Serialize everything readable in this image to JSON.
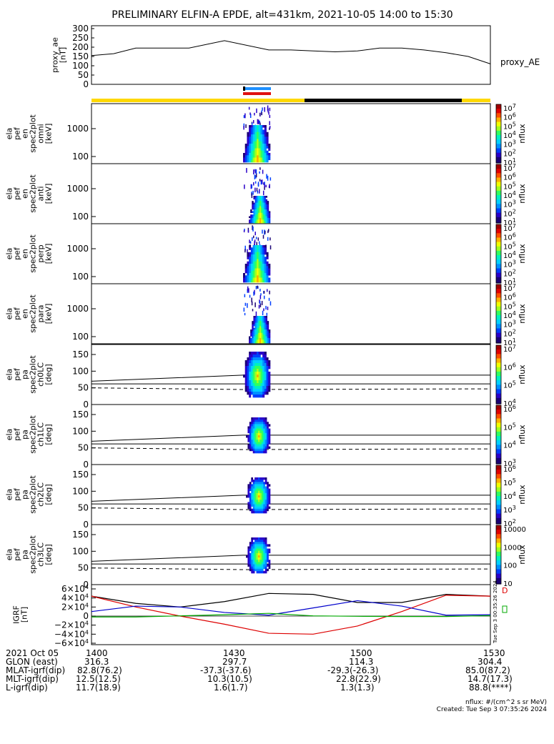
{
  "title": "PRELIMINARY ELFIN-A EPDE, alt=431km, 2021-10-05 14:00 to 15:30",
  "colors": {
    "bar_yellow": "#ffd800",
    "bar_black": "#000000",
    "bar_blue": "#1e90ff",
    "bar_red": "#e01010"
  },
  "chart_data": [
    {
      "type": "line",
      "ylabel": "proxy_ae\n[nT]",
      "yticks": [
        "300",
        "250",
        "200",
        "150",
        "100",
        "50",
        "0"
      ],
      "ylim": [
        0,
        300
      ],
      "series": [
        {
          "name": "proxy_AE",
          "x_min": [
            0,
            5,
            10,
            15,
            22,
            30,
            40,
            45,
            50,
            55,
            60,
            65,
            70,
            75,
            80,
            85,
            90
          ],
          "values": [
            155,
            165,
            195,
            195,
            195,
            235,
            185,
            185,
            180,
            175,
            180,
            195,
            195,
            185,
            170,
            150,
            110
          ]
        }
      ]
    },
    {
      "type": "heatmap",
      "ylabel": "ela\npef\nen\nspec2plot\nomni\n[keV]",
      "yticks": [
        "1000",
        "100"
      ],
      "zlabel": "nflux",
      "ztick_labels": [
        "10^7",
        "10^6",
        "10^5",
        "10^4",
        "10^3",
        "10^2",
        "10^1"
      ]
    },
    {
      "type": "heatmap",
      "ylabel": "ela\npef\nen\nspec2plot\nanti\n[keV]",
      "yticks": [
        "1000",
        "100"
      ],
      "zlabel": "nflux",
      "ztick_labels": [
        "10^7",
        "10^6",
        "10^5",
        "10^4",
        "10^3",
        "10^2",
        "10^1"
      ]
    },
    {
      "type": "heatmap",
      "ylabel": "ela\npef\nen\nspec2plot\nperp\n[keV]",
      "yticks": [
        "1000",
        "100"
      ],
      "zlabel": "nflux",
      "ztick_labels": [
        "10^7",
        "10^6",
        "10^5",
        "10^4",
        "10^3",
        "10^2",
        "10^1"
      ]
    },
    {
      "type": "heatmap",
      "ylabel": "ela\npef\nen\nspec2plot\npara\n[keV]",
      "yticks": [
        "1000",
        "100"
      ],
      "zlabel": "nflux",
      "ztick_labels": [
        "10^7",
        "10^6",
        "10^5",
        "10^4",
        "10^3",
        "10^2",
        "10^1"
      ]
    },
    {
      "type": "heatmap",
      "ylabel": "ela\npef\npa\nspec2plot\nch0LC\n[deg]",
      "yticks": [
        "150",
        "100",
        "50",
        "0"
      ],
      "ylim": [
        0,
        180
      ],
      "zlabel": "nflux",
      "ztick_labels": [
        "10^7",
        "10^6",
        "10^5",
        "10^4"
      ]
    },
    {
      "type": "heatmap",
      "ylabel": "ela\npef\npa\nspec2plot\nch1LC\n[deg]",
      "yticks": [
        "150",
        "100",
        "50",
        "0"
      ],
      "ylim": [
        0,
        180
      ],
      "zlabel": "nflux",
      "ztick_labels": [
        "10^6",
        "10^5",
        "10^4",
        "10^3"
      ]
    },
    {
      "type": "heatmap",
      "ylabel": "ela\npef\npa\nspec2plot\nch2LC\n[deg]",
      "yticks": [
        "150",
        "100",
        "50",
        "0"
      ],
      "ylim": [
        0,
        180
      ],
      "zlabel": "nflux",
      "ztick_labels": [
        "10^6",
        "10^5",
        "10^4",
        "10^3",
        "10^2"
      ]
    },
    {
      "type": "heatmap",
      "ylabel": "ela\npef\npa\nspec2plot\nch3LC\n[deg]",
      "yticks": [
        "150",
        "100",
        "50",
        "0"
      ],
      "ylim": [
        0,
        180
      ],
      "zlabel": "nflux",
      "ztick_labels": [
        "10000",
        "1000",
        "100",
        "10"
      ]
    },
    {
      "type": "line",
      "ylabel": "IGRF\n[nT]",
      "yticks": [
        "6×10^4",
        "4×10^4",
        "2×10^4",
        "0",
        "−2×10^4",
        "−4×10^4",
        "−6×10^4"
      ],
      "ylim": [
        -60000,
        60000
      ],
      "series": [
        {
          "name": "D",
          "color": "#000000",
          "x_min": [
            0,
            10,
            20,
            30,
            40,
            50,
            60,
            70,
            80,
            90
          ],
          "values": [
            44000,
            28000,
            20000,
            32000,
            50000,
            48000,
            30000,
            30000,
            48000,
            44000
          ]
        },
        {
          "name": "",
          "color": "#dd0000",
          "x_min": [
            0,
            10,
            20,
            30,
            40,
            50,
            60,
            70,
            80,
            90
          ],
          "values": [
            44000,
            20000,
            0,
            -18000,
            -38000,
            -40000,
            -22000,
            10000,
            46000,
            44000
          ]
        },
        {
          "name": "",
          "color": "#0000cc",
          "x_min": [
            0,
            10,
            20,
            30,
            40,
            50,
            60,
            70,
            80,
            90
          ],
          "values": [
            10000,
            22000,
            20000,
            8000,
            2000,
            18000,
            34000,
            22000,
            2000,
            3000
          ]
        },
        {
          "name": "",
          "color": "#00aa00",
          "x_min": [
            0,
            10,
            20,
            30,
            40,
            50,
            60,
            70,
            80,
            90
          ],
          "values": [
            -2000,
            -2000,
            500,
            3000,
            6000,
            500,
            -500,
            -1000,
            -1000,
            1000
          ]
        }
      ]
    }
  ],
  "legend_D": "D",
  "side_label_proxy": "proxy_AE",
  "vertical_stamp": "Tue Sep  3 00:35:26 2024",
  "footer": {
    "rows": [
      {
        "label": "2021 Oct 05",
        "v": [
          "1400",
          "1430",
          "1500",
          "1530"
        ]
      },
      {
        "label": "GLON (east)",
        "v": [
          "316.3",
          "297.7",
          "114.3",
          "304.4"
        ]
      },
      {
        "label": "MLAT-igrf(dip)",
        "v": [
          "82.8(76.2)",
          "-37.3(-37.6)",
          "-29.3(-26.3)",
          "85.0(87.2)"
        ]
      },
      {
        "label": "MLT-igrf(dip)",
        "v": [
          "12.5(12.5)",
          "10.3(10.5)",
          "22.8(22.9)",
          "14.7(17.3)"
        ]
      },
      {
        "label": "L-igrf(dip)",
        "v": [
          "11.7(18.9)",
          "1.6(1.7)",
          "1.3(1.3)",
          "88.8(****)"
        ]
      }
    ],
    "unit_note": "nflux: #/(cm^2 s sr MeV)",
    "created": "Created: Tue Sep  3 07:35:26 2024"
  }
}
